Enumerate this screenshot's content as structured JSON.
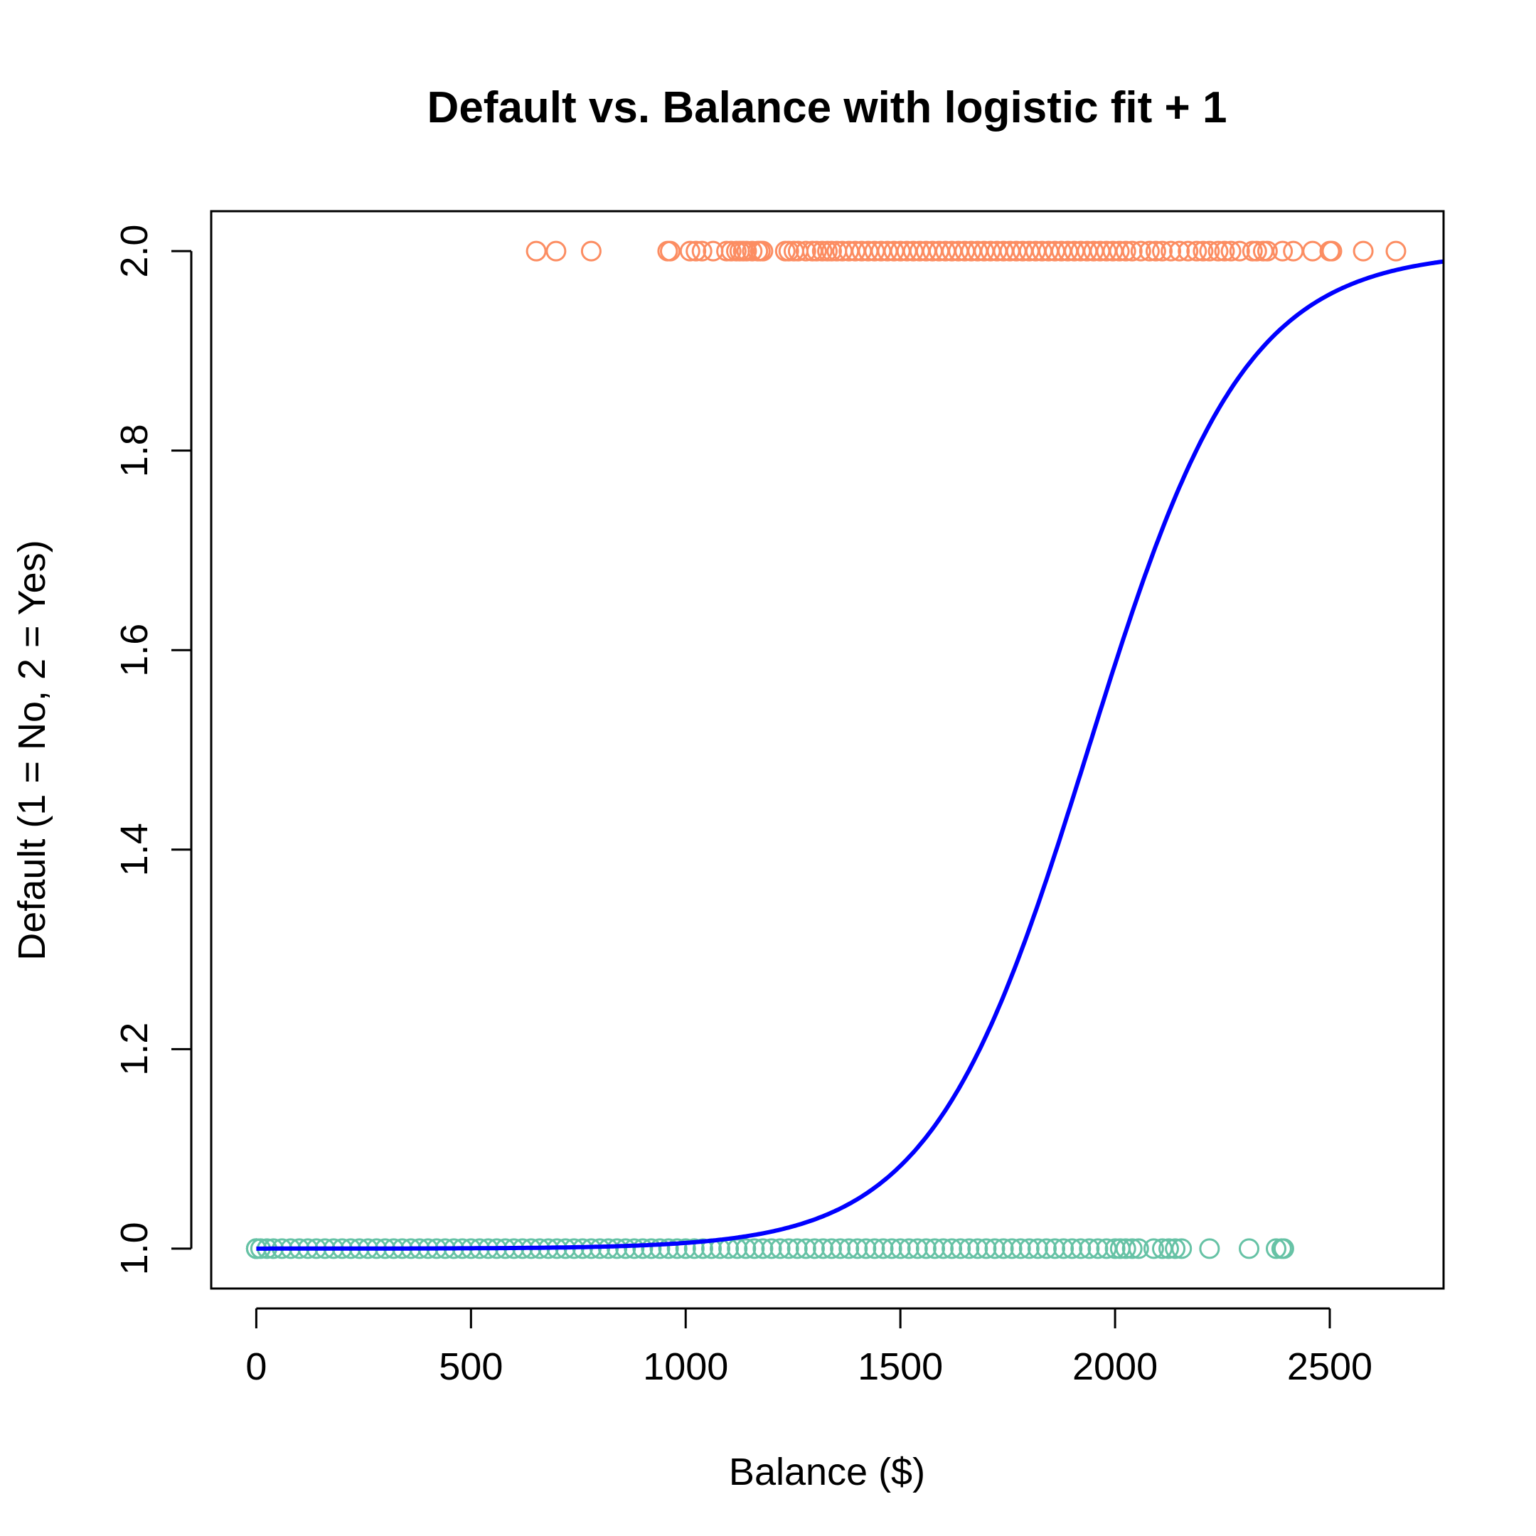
{
  "chart_data": {
    "type": "scatter",
    "title": "Default vs. Balance with logistic fit + 1",
    "xlabel": "Balance ($)",
    "ylabel": "Default (1 = No, 2 = Yes)",
    "xlim": [
      -105,
      2765
    ],
    "ylim": [
      0.96,
      2.04
    ],
    "x_ticks": [
      0,
      500,
      1000,
      1500,
      2000,
      2500
    ],
    "y_ticks": [
      1.0,
      1.2,
      1.4,
      1.6,
      1.8,
      2.0
    ],
    "x_tick_labels": [
      "0",
      "500",
      "1000",
      "1500",
      "2000",
      "2500"
    ],
    "y_tick_labels": [
      "1.0",
      "1.2",
      "1.4",
      "1.6",
      "1.8",
      "2.0"
    ],
    "grid": false,
    "legend": "none",
    "series": [
      {
        "color": "#FC8D62",
        "marker": "open-circle",
        "y": 2,
        "x": [
          652,
          698,
          780,
          958,
          964,
          1010,
          1024,
          1038,
          1064,
          1095,
          1106,
          1118,
          1126,
          1134,
          1142,
          1155,
          1168,
          1174,
          1180,
          1232,
          1240,
          1252,
          1262,
          1280,
          1295,
          1305,
          1318,
          1330,
          1340,
          1352,
          1365,
          1380,
          1395,
          1410,
          1425,
          1440,
          1455,
          1470,
          1485,
          1500,
          1515,
          1530,
          1545,
          1560,
          1575,
          1590,
          1605,
          1620,
          1635,
          1650,
          1665,
          1680,
          1695,
          1710,
          1725,
          1740,
          1755,
          1770,
          1785,
          1800,
          1815,
          1830,
          1845,
          1860,
          1875,
          1890,
          1905,
          1920,
          1935,
          1950,
          1965,
          1980,
          1995,
          2010,
          2025,
          2040,
          2060,
          2080,
          2095,
          2110,
          2130,
          2150,
          2170,
          2190,
          2205,
          2220,
          2240,
          2255,
          2270,
          2290,
          2320,
          2330,
          2345,
          2355,
          2390,
          2415,
          2460,
          2500,
          2505,
          2578,
          2654
        ]
      },
      {
        "color": "#66C2A5",
        "marker": "open-circle",
        "y": 1,
        "x": [
          0,
          0,
          0,
          0,
          0,
          10,
          25,
          40,
          60,
          80,
          100,
          120,
          140,
          160,
          180,
          200,
          220,
          240,
          260,
          280,
          300,
          320,
          340,
          360,
          380,
          400,
          420,
          440,
          460,
          480,
          500,
          520,
          540,
          560,
          580,
          600,
          620,
          640,
          660,
          680,
          700,
          720,
          740,
          760,
          780,
          800,
          820,
          840,
          860,
          880,
          900,
          920,
          940,
          960,
          980,
          1000,
          1020,
          1040,
          1060,
          1080,
          1100,
          1120,
          1140,
          1160,
          1180,
          1200,
          1220,
          1240,
          1260,
          1280,
          1300,
          1320,
          1340,
          1360,
          1380,
          1400,
          1420,
          1440,
          1460,
          1480,
          1500,
          1520,
          1540,
          1560,
          1580,
          1600,
          1620,
          1640,
          1660,
          1680,
          1700,
          1720,
          1740,
          1760,
          1780,
          1800,
          1820,
          1840,
          1860,
          1880,
          1900,
          1920,
          1940,
          1960,
          1980,
          2000,
          2012,
          2025,
          2040,
          2055,
          2090,
          2110,
          2125,
          2140,
          2155,
          2220,
          2312,
          2375,
          2388,
          2393
        ]
      },
      {
        "color": "#0000FF",
        "marker": "line",
        "curve": "logistic fit + 1",
        "intercept": -10.6513,
        "slope": 0.005499
      }
    ]
  }
}
